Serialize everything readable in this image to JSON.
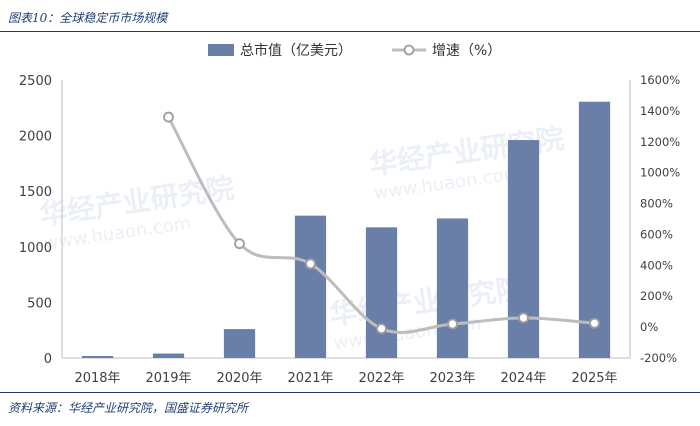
{
  "figure_title": "图表10：全球稳定币市场规模",
  "source_note": "资料来源：华经产业研究院，国盛证券研究所",
  "watermark": {
    "name": "华经产业研究院",
    "url": "www.huaon.com"
  },
  "colors": {
    "bar": "#6a7fa7",
    "line": "#bdbdbd",
    "marker_fill": "#ffffff",
    "marker_stroke": "#9e9e9e",
    "caption": "#1f3f72"
  },
  "chart_data": {
    "type": "bar",
    "categories": [
      "2018年",
      "2019年",
      "2020年",
      "2021年",
      "2022年",
      "2023年",
      "2024年",
      "2025年"
    ],
    "series": [
      {
        "name": "总市值（亿美元）",
        "type": "bar",
        "axis": "left",
        "values": [
          18,
          40,
          260,
          1280,
          1175,
          1255,
          1960,
          2305
        ]
      },
      {
        "name": "增速（%）",
        "type": "line",
        "axis": "right",
        "values": [
          null,
          1360,
          540,
          410,
          -10,
          20,
          60,
          25
        ]
      }
    ],
    "y_left": {
      "min": 0,
      "max": 2500,
      "ticks": [
        "0",
        "500",
        "1000",
        "1500",
        "2000",
        "2500"
      ],
      "tick_values": [
        0,
        500,
        1000,
        1500,
        2000,
        2500
      ]
    },
    "y_right": {
      "min": -200,
      "max": 1600,
      "ticks": [
        "-200%",
        "0%",
        "200%",
        "400%",
        "600%",
        "800%",
        "1000%",
        "1200%",
        "1400%",
        "1600%"
      ],
      "tick_values": [
        -200,
        0,
        200,
        400,
        600,
        800,
        1000,
        1200,
        1400,
        1600
      ]
    },
    "legend_position": "top-center",
    "grid": false
  }
}
